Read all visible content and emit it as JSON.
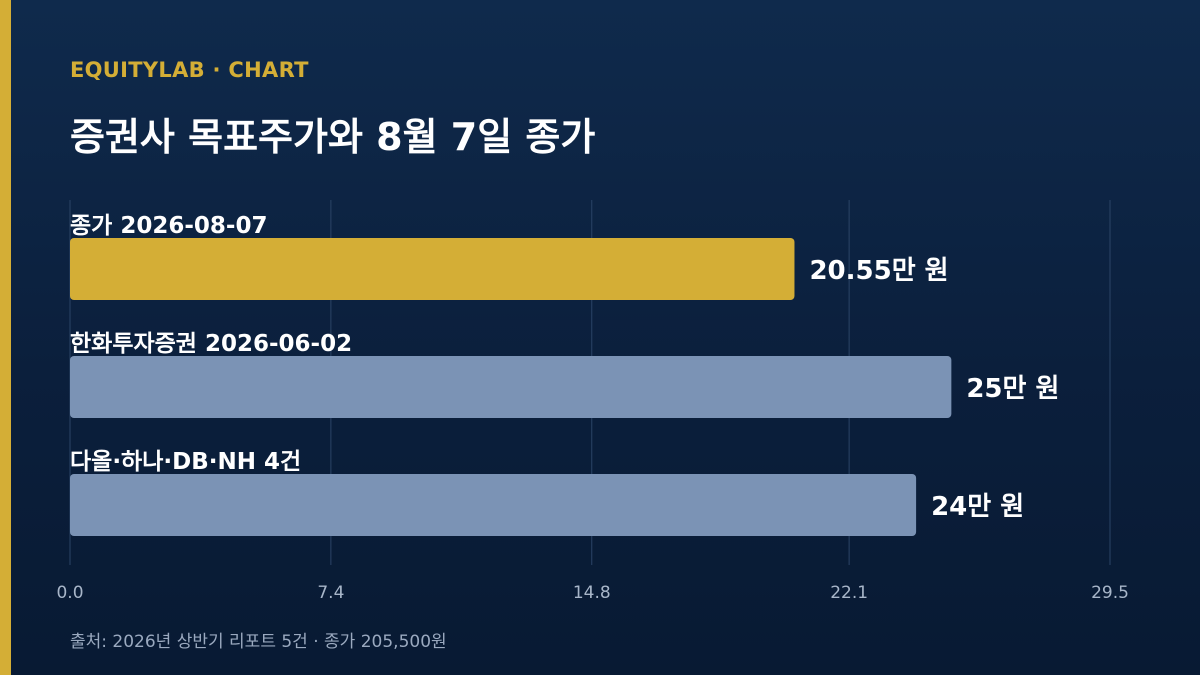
{
  "header": {
    "kicker": "EQUITYLAB · CHART",
    "title": "증권사 목표주가와 8월 7일 종가"
  },
  "footer": {
    "source": "출처: 2026년 상반기 리포트 5건 · 종가 205,500원"
  },
  "colors": {
    "accent": "#d4ae36",
    "bar_primary": "#d4ae36",
    "bar_secondary": "#7b93b5",
    "grid": "#2b4466",
    "tick_text": "#a8b6c9"
  },
  "chart_data": {
    "type": "bar",
    "orientation": "horizontal",
    "title": "증권사 목표주가와 8월 7일 종가",
    "xlabel": "",
    "ylabel": "",
    "xlim": [
      0,
      29.5
    ],
    "ticks": [
      0.0,
      7.4,
      14.8,
      22.1,
      29.5
    ],
    "tick_labels": [
      "0.0",
      "7.4",
      "14.8",
      "22.1",
      "29.5"
    ],
    "grid": true,
    "categories": [
      "종가 2026-08-07",
      "한화투자증권 2026-06-02",
      "다올·하나·DB·NH 4건"
    ],
    "values": [
      20.55,
      25,
      24
    ],
    "value_labels": [
      "20.55만 원",
      "25만 원",
      "24만 원"
    ],
    "bar_colors": [
      "#d4ae36",
      "#7b93b5",
      "#7b93b5"
    ]
  }
}
